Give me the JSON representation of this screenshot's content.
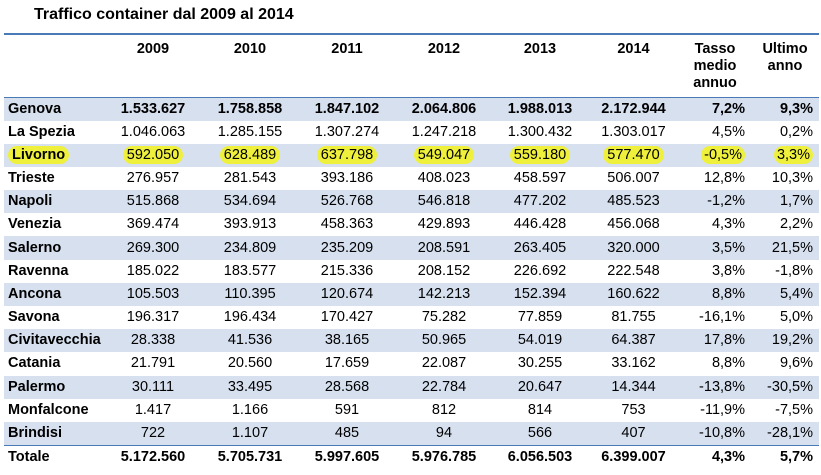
{
  "title": "Traffico container dal 2009 al 2014",
  "headers": [
    "",
    "2009",
    "2010",
    "2011",
    "2012",
    "2013",
    "2014",
    "Tasso medio annuo",
    "Ultimo anno"
  ],
  "header_lines": {
    "tasso": [
      "Tasso",
      "medio",
      "annuo"
    ],
    "ultimo": [
      "Ultimo",
      "anno"
    ]
  },
  "highlight_color": "#eef03c",
  "stripe_color": "#d6e0ef",
  "rule_color": "#4a7ab5",
  "rows": [
    {
      "port": "Genova",
      "values": [
        "1.533.627",
        "1.758.858",
        "1.847.102",
        "2.064.806",
        "1.988.013",
        "2.172.944"
      ],
      "tasso": "7,2%",
      "ultimo": "9,3%",
      "bold": true,
      "highlight": false
    },
    {
      "port": "La Spezia",
      "values": [
        "1.046.063",
        "1.285.155",
        "1.307.274",
        "1.247.218",
        "1.300.432",
        "1.303.017"
      ],
      "tasso": "4,5%",
      "ultimo": "0,2%",
      "bold": false,
      "highlight": false
    },
    {
      "port": "Livorno",
      "values": [
        "592.050",
        "628.489",
        "637.798",
        "549.047",
        "559.180",
        "577.470"
      ],
      "tasso": "-0,5%",
      "ultimo": "3,3%",
      "bold": false,
      "highlight": true
    },
    {
      "port": "Trieste",
      "values": [
        "276.957",
        "281.543",
        "393.186",
        "408.023",
        "458.597",
        "506.007"
      ],
      "tasso": "12,8%",
      "ultimo": "10,3%",
      "bold": false,
      "highlight": false
    },
    {
      "port": "Napoli",
      "values": [
        "515.868",
        "534.694",
        "526.768",
        "546.818",
        "477.202",
        "485.523"
      ],
      "tasso": "-1,2%",
      "ultimo": "1,7%",
      "bold": false,
      "highlight": false
    },
    {
      "port": "Venezia",
      "values": [
        "369.474",
        "393.913",
        "458.363",
        "429.893",
        "446.428",
        "456.068"
      ],
      "tasso": "4,3%",
      "ultimo": "2,2%",
      "bold": false,
      "highlight": false
    },
    {
      "port": "Salerno",
      "values": [
        "269.300",
        "234.809",
        "235.209",
        "208.591",
        "263.405",
        "320.000"
      ],
      "tasso": "3,5%",
      "ultimo": "21,5%",
      "bold": false,
      "highlight": false
    },
    {
      "port": "Ravenna",
      "values": [
        "185.022",
        "183.577",
        "215.336",
        "208.152",
        "226.692",
        "222.548"
      ],
      "tasso": "3,8%",
      "ultimo": "-1,8%",
      "bold": false,
      "highlight": false
    },
    {
      "port": "Ancona",
      "values": [
        "105.503",
        "110.395",
        "120.674",
        "142.213",
        "152.394",
        "160.622"
      ],
      "tasso": "8,8%",
      "ultimo": "5,4%",
      "bold": false,
      "highlight": false
    },
    {
      "port": "Savona",
      "values": [
        "196.317",
        "196.434",
        "170.427",
        "75.282",
        "77.859",
        "81.755"
      ],
      "tasso": "-16,1%",
      "ultimo": "5,0%",
      "bold": false,
      "highlight": false
    },
    {
      "port": "Civitavecchia",
      "values": [
        "28.338",
        "41.536",
        "38.165",
        "50.965",
        "54.019",
        "64.387"
      ],
      "tasso": "17,8%",
      "ultimo": "19,2%",
      "bold": false,
      "highlight": false
    },
    {
      "port": "Catania",
      "values": [
        "21.791",
        "20.560",
        "17.659",
        "22.087",
        "30.255",
        "33.162"
      ],
      "tasso": "8,8%",
      "ultimo": "9,6%",
      "bold": false,
      "highlight": false
    },
    {
      "port": "Palermo",
      "values": [
        "30.111",
        "33.495",
        "28.568",
        "22.784",
        "20.647",
        "14.344"
      ],
      "tasso": "-13,8%",
      "ultimo": "-30,5%",
      "bold": false,
      "highlight": false
    },
    {
      "port": "Monfalcone",
      "values": [
        "1.417",
        "1.166",
        "591",
        "812",
        "814",
        "753"
      ],
      "tasso": "-11,9%",
      "ultimo": "-7,5%",
      "bold": false,
      "highlight": false
    },
    {
      "port": "Brindisi",
      "values": [
        "722",
        "1.107",
        "485",
        "94",
        "566",
        "407"
      ],
      "tasso": "-10,8%",
      "ultimo": "-28,1%",
      "bold": false,
      "highlight": false
    }
  ],
  "total": {
    "port": "Totale",
    "values": [
      "5.172.560",
      "5.705.731",
      "5.997.605",
      "5.976.785",
      "6.056.503",
      "6.399.007"
    ],
    "tasso": "4,3%",
    "ultimo": "5,7%"
  }
}
